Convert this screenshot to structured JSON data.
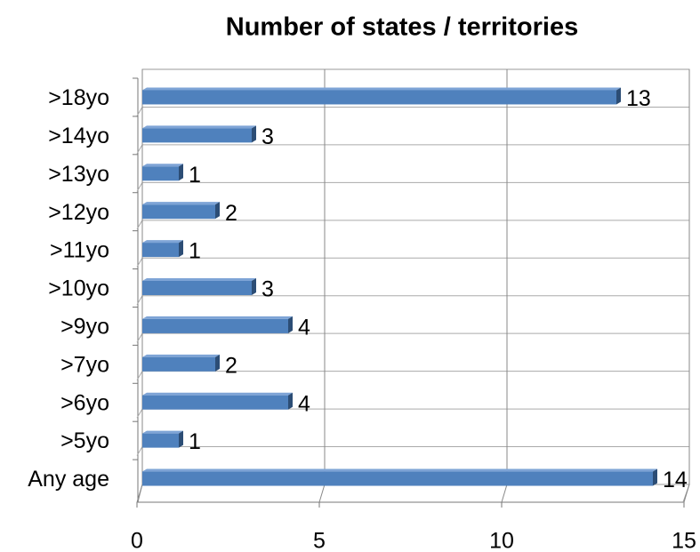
{
  "chart_data": {
    "type": "bar",
    "orientation": "horizontal",
    "title": "Number of states / territories",
    "categories": [
      ">18yo",
      ">14yo",
      ">13yo",
      ">12yo",
      ">11yo",
      ">10yo",
      ">9yo",
      ">7yo",
      ">6yo",
      ">5yo",
      "Any age"
    ],
    "values": [
      13,
      3,
      1,
      2,
      1,
      3,
      4,
      2,
      4,
      1,
      14
    ],
    "color": "#4f81bd",
    "xlim": [
      0,
      15
    ],
    "xticks": [
      0,
      5,
      10,
      15
    ],
    "grid": true
  }
}
